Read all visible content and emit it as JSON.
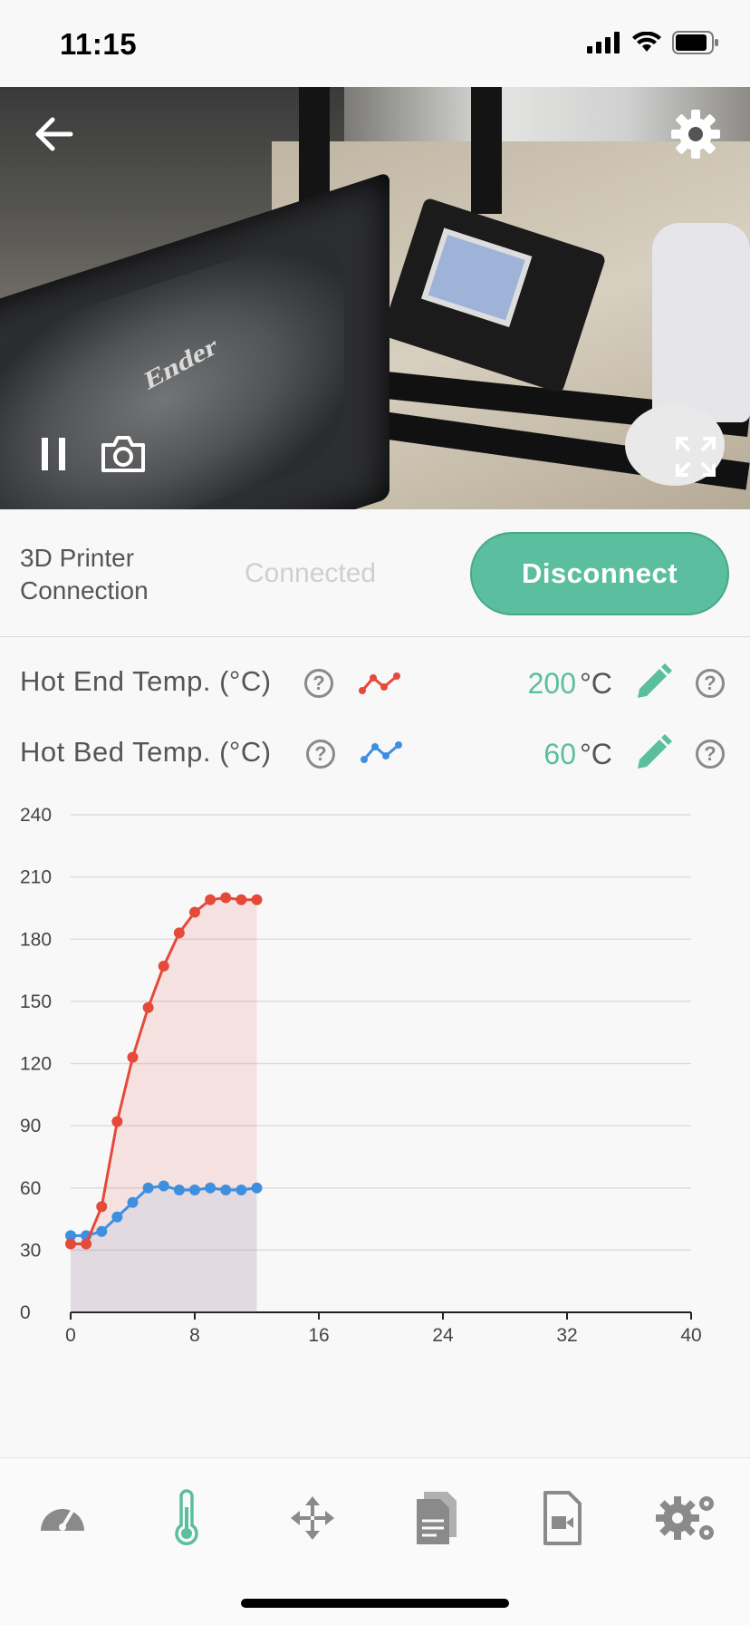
{
  "status_bar": {
    "time": "11:15",
    "icons": [
      "cellular-signal-icon",
      "wifi-icon",
      "battery-icon"
    ]
  },
  "camera": {
    "bed_brand_text": "Ender",
    "controls": [
      "back-arrow-icon",
      "gear-icon",
      "pause-icon",
      "camera-icon",
      "fullscreen-icon"
    ]
  },
  "connection": {
    "label": "3D Printer Connection",
    "status": "Connected",
    "button_label": "Disconnect"
  },
  "hot_end": {
    "label": "Hot End Temp. (°C)",
    "value": "200",
    "unit": "°C",
    "help": "?",
    "line_color": "#e5493a"
  },
  "hot_bed": {
    "label": "Hot Bed Temp. (°C)",
    "value": "60",
    "unit": "°C",
    "help": "?",
    "line_color": "#3f8fe0"
  },
  "colors": {
    "accent": "#5bbf9f",
    "hot_end": "#e5493a",
    "hot_bed": "#3f8fe0",
    "icon_gray": "#8a8a8a"
  },
  "chart_data": {
    "type": "line",
    "title": "",
    "xlabel": "",
    "ylabel": "",
    "xlim": [
      0,
      40
    ],
    "ylim": [
      0,
      240
    ],
    "x_ticks": [
      "0",
      "8",
      "16",
      "24",
      "32",
      "40"
    ],
    "y_ticks": [
      "0",
      "30",
      "60",
      "90",
      "120",
      "150",
      "180",
      "210",
      "240"
    ],
    "grid": true,
    "legend": "none",
    "area_fill": true,
    "series": [
      {
        "color": "#e5493a",
        "x": [
          0,
          1,
          2,
          3,
          4,
          5,
          6,
          7,
          8,
          9,
          10,
          11,
          12
        ],
        "y": [
          33,
          33,
          51,
          92,
          123,
          147,
          167,
          183,
          193,
          199,
          200,
          199,
          199
        ]
      },
      {
        "color": "#3f8fe0",
        "x": [
          0,
          1,
          2,
          3,
          4,
          5,
          6,
          7,
          8,
          9,
          10,
          11,
          12
        ],
        "y": [
          37,
          37,
          39,
          46,
          53,
          60,
          61,
          59,
          59,
          60,
          59,
          59,
          60
        ]
      }
    ]
  },
  "tabs": [
    {
      "icon": "dashboard-gauge-icon",
      "active": false
    },
    {
      "icon": "thermometer-icon",
      "active": true
    },
    {
      "icon": "move-arrows-icon",
      "active": false
    },
    {
      "icon": "files-icon",
      "active": false
    },
    {
      "icon": "video-file-icon",
      "active": false
    },
    {
      "icon": "settings-gears-icon",
      "active": false
    }
  ]
}
